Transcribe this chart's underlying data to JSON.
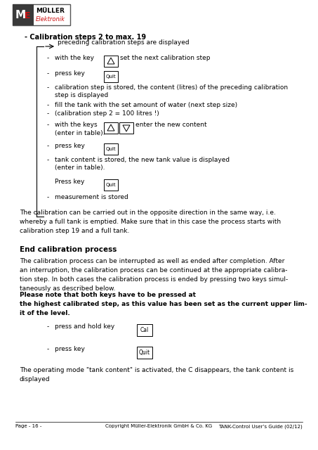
{
  "bg_color": "#ffffff",
  "footer_left": "Page - 16 -",
  "footer_center": "Copyright Müller-Elektronik GmbH & Co. KG",
  "footer_right": "TANK-Control User’s Guide (02/12)",
  "title": "- Calibration steps 2 to max. 19",
  "preceding_label": "preceding calibration steps are displayed",
  "para1": "The calibration can be carried out in the opposite direction in the same way, i.e.\nwhereby a full tank is emptied. Make sure that in this case the process starts with\ncalibration step 19 and a full tank.",
  "end_heading": "End calibration process",
  "para2_normal": "The calibration process can be interrupted as well as ended after completion. After\nan interruption, the calibration process can be continued at the appropriate calibra-\ntion step. In both cases the calibration process is ended by pressing two keys simul-\ntaneously as described below. ",
  "para2_bold": "Please note that both keys have to be pressed at\nthe highest calibrated step, as this value has been set as the current upper lim-\nit of the level.",
  "last_para": "The operating mode \"tank content\" is activated, the C disappears, the tank content is\ndisplayed"
}
